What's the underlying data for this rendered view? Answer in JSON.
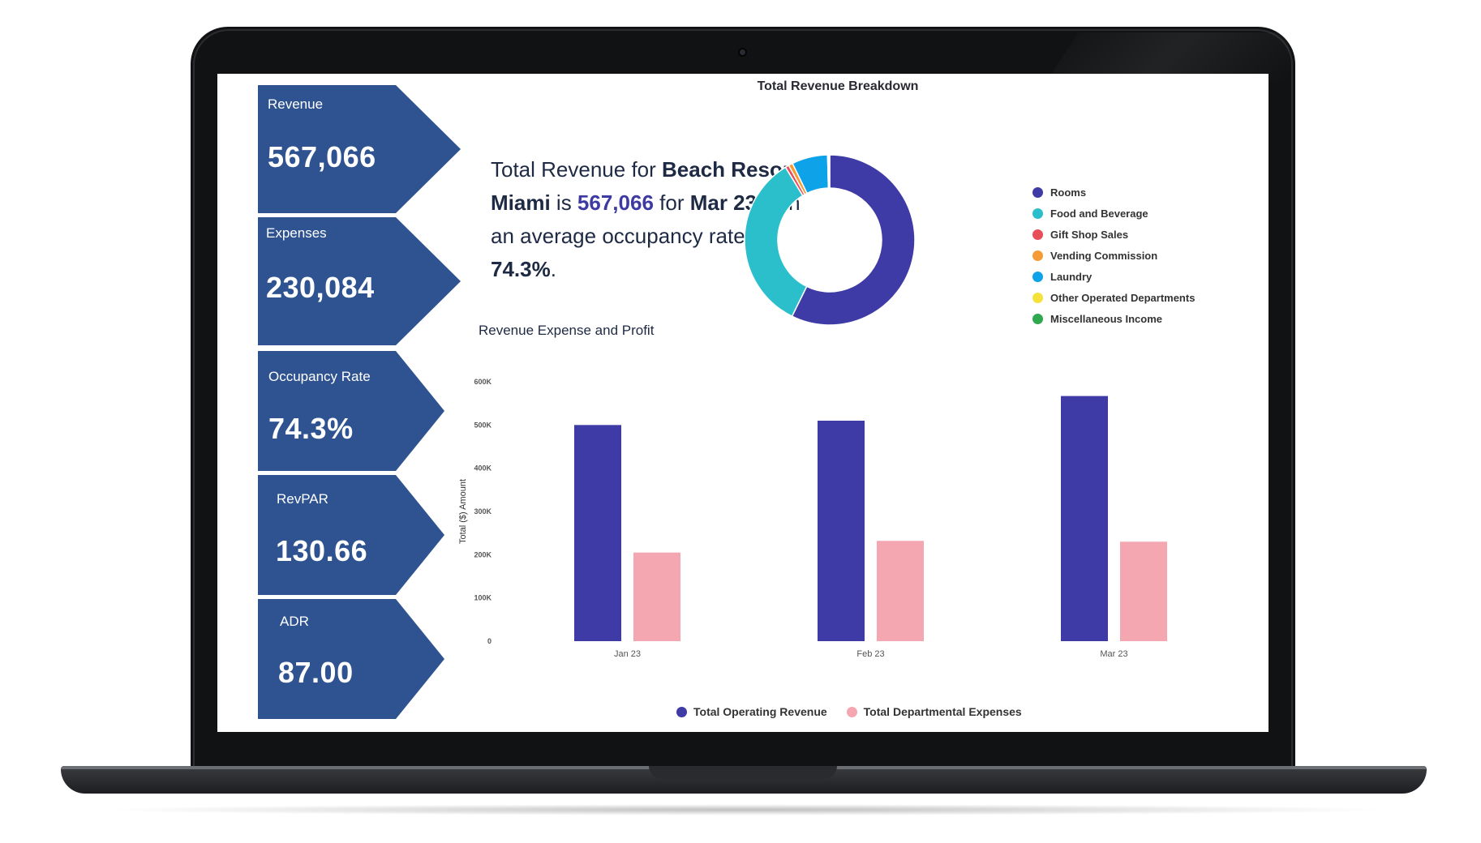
{
  "kpis": [
    {
      "label": "Revenue",
      "value": "567,066"
    },
    {
      "label": "Expenses",
      "value": "230,084"
    },
    {
      "label": "Occupancy Rate",
      "value": "74.3%"
    },
    {
      "label": "RevPAR",
      "value": "130.66"
    },
    {
      "label": "ADR",
      "value": "87.00"
    }
  ],
  "summary": {
    "p1": "Total Revenue for ",
    "property": "Beach Resort Miami",
    "p2": " is ",
    "revenue": "567,066",
    "p3": " for ",
    "period": "Mar 23",
    "p4": " with an average occupancy rate of ",
    "occupancy": "74.3%",
    "p5": "."
  },
  "colors": {
    "kpi_bg": "#2e5390",
    "revenue": "#3f3ba6",
    "expenses": "#f4a7b1"
  },
  "chart_data": [
    {
      "type": "pie",
      "title": "Total Revenue Breakdown",
      "donut": true,
      "labels": [
        "Rooms",
        "Food and Beverage",
        "Gift Shop Sales",
        "Vending Commission",
        "Laundry",
        "Other Operated Departments",
        "Miscellaneous Income"
      ],
      "values": [
        57.3,
        34.0,
        0.7,
        0.8,
        6.8,
        0.2,
        0.2
      ],
      "colors": [
        "#3f3ba6",
        "#2bbfcc",
        "#e84e5a",
        "#f59b35",
        "#0ea3e8",
        "#f5e13c",
        "#2fa84f"
      ],
      "legend_position": "right"
    },
    {
      "type": "bar",
      "title": "Revenue Expense and Profit",
      "categories": [
        "Jan 23",
        "Feb 23",
        "Mar 23"
      ],
      "series": [
        {
          "name": "Total Operating Revenue",
          "values": [
            500000,
            510000,
            567066
          ],
          "color": "#3f3ba6"
        },
        {
          "name": "Total Departmental Expenses",
          "values": [
            205000,
            232000,
            230084
          ],
          "color": "#f4a7b1"
        }
      ],
      "ylabel": "Total ($) Amount",
      "xlabel": "",
      "ylim": [
        0,
        600000
      ],
      "yticks": [
        0,
        100000,
        200000,
        300000,
        400000,
        500000,
        600000
      ],
      "ytick_labels": [
        "0",
        "100K",
        "200K",
        "300K",
        "400K",
        "500K",
        "600K"
      ],
      "legend_position": "bottom"
    }
  ]
}
